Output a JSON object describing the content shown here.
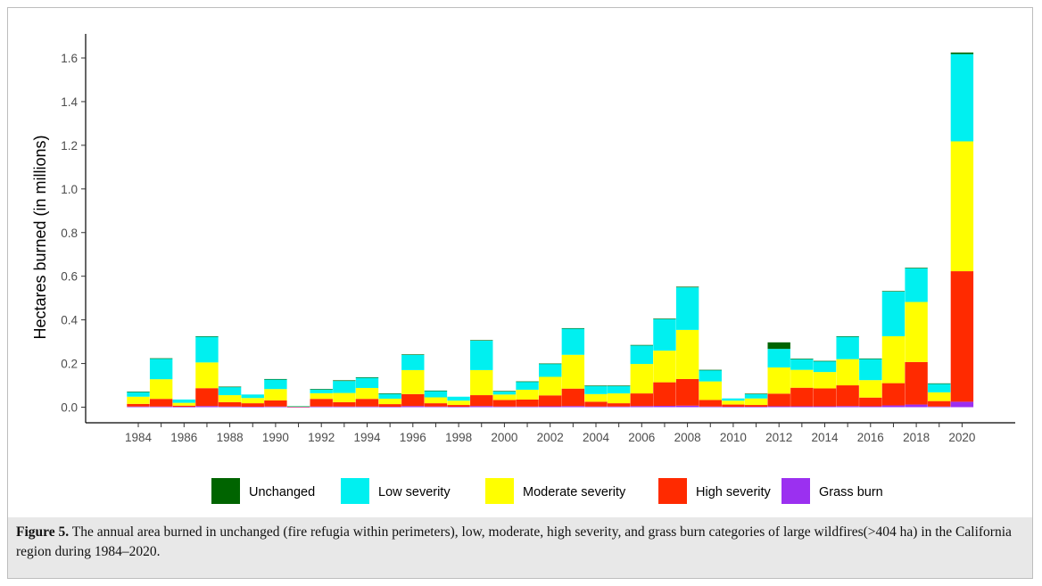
{
  "chart_data": {
    "type": "bar",
    "stacked": true,
    "ylabel": "Hectares burned (in millions)",
    "xlabel": "",
    "ylim": [
      0,
      1.72
    ],
    "y_ticks": [
      "0.0",
      "0.2",
      "0.4",
      "0.6",
      "0.8",
      "1.0",
      "1.2",
      "1.4",
      "1.6"
    ],
    "x_tick_labels": [
      "1984",
      "1986",
      "1988",
      "1990",
      "1992",
      "1994",
      "1996",
      "1998",
      "2000",
      "2002",
      "2004",
      "2006",
      "2008",
      "2010",
      "2012",
      "2014",
      "2016",
      "2018",
      "2020"
    ],
    "grid": false,
    "legend_position": "bottom",
    "categories": [
      "1984",
      "1985",
      "1986",
      "1987",
      "1988",
      "1989",
      "1990",
      "1991",
      "1992",
      "1993",
      "1994",
      "1995",
      "1996",
      "1997",
      "1998",
      "1999",
      "2000",
      "2001",
      "2002",
      "2003",
      "2004",
      "2005",
      "2006",
      "2007",
      "2008",
      "2009",
      "2010",
      "2011",
      "2012",
      "2013",
      "2014",
      "2015",
      "2016",
      "2017",
      "2018",
      "2019",
      "2020"
    ],
    "series": [
      {
        "name": "Grass burn",
        "color": "#9b30f0",
        "values": [
          0.003,
          0.003,
          0.002,
          0.005,
          0.003,
          0.002,
          0.003,
          0.001,
          0.003,
          0.003,
          0.003,
          0.002,
          0.005,
          0.003,
          0.002,
          0.005,
          0.003,
          0.003,
          0.004,
          0.005,
          0.003,
          0.003,
          0.005,
          0.006,
          0.007,
          0.003,
          0.002,
          0.002,
          0.004,
          0.004,
          0.004,
          0.005,
          0.004,
          0.008,
          0.012,
          0.003,
          0.025
        ]
      },
      {
        "name": "High severity",
        "color": "#ff2a00",
        "values": [
          0.012,
          0.035,
          0.005,
          0.082,
          0.02,
          0.016,
          0.028,
          0.002,
          0.035,
          0.02,
          0.035,
          0.012,
          0.055,
          0.015,
          0.008,
          0.05,
          0.03,
          0.032,
          0.05,
          0.08,
          0.022,
          0.015,
          0.058,
          0.108,
          0.122,
          0.03,
          0.01,
          0.008,
          0.058,
          0.085,
          0.082,
          0.095,
          0.04,
          0.102,
          0.195,
          0.025,
          0.598
        ]
      },
      {
        "name": "Moderate severity",
        "color": "#ffff00",
        "values": [
          0.033,
          0.09,
          0.013,
          0.118,
          0.032,
          0.024,
          0.052,
          0.002,
          0.026,
          0.042,
          0.05,
          0.025,
          0.11,
          0.027,
          0.02,
          0.115,
          0.025,
          0.045,
          0.085,
          0.155,
          0.035,
          0.045,
          0.135,
          0.145,
          0.225,
          0.085,
          0.018,
          0.03,
          0.12,
          0.082,
          0.075,
          0.12,
          0.08,
          0.215,
          0.275,
          0.04,
          0.595
        ]
      },
      {
        "name": "Low severity",
        "color": "#00f0f0",
        "values": [
          0.022,
          0.095,
          0.015,
          0.118,
          0.038,
          0.016,
          0.045,
          0.001,
          0.018,
          0.055,
          0.048,
          0.023,
          0.07,
          0.03,
          0.018,
          0.135,
          0.015,
          0.037,
          0.06,
          0.12,
          0.038,
          0.035,
          0.085,
          0.145,
          0.195,
          0.052,
          0.01,
          0.02,
          0.085,
          0.05,
          0.05,
          0.103,
          0.098,
          0.205,
          0.155,
          0.04,
          0.4
        ]
      },
      {
        "name": "Unchanged",
        "color": "#006400",
        "values": [
          0.001,
          0.001,
          0.0,
          0.002,
          0.001,
          0.0,
          0.001,
          0.0,
          0.001,
          0.003,
          0.001,
          0.001,
          0.002,
          0.001,
          0.0,
          0.002,
          0.001,
          0.001,
          0.001,
          0.002,
          0.001,
          0.001,
          0.002,
          0.002,
          0.003,
          0.001,
          0.0,
          0.002,
          0.03,
          0.001,
          0.001,
          0.002,
          0.001,
          0.002,
          0.002,
          0.001,
          0.007
        ]
      }
    ],
    "legend": [
      {
        "label": "Unchanged",
        "color": "#006400"
      },
      {
        "label": "Low severity",
        "color": "#00f0f0"
      },
      {
        "label": "Moderate severity",
        "color": "#ffff00"
      },
      {
        "label": "High severity",
        "color": "#ff2a00"
      },
      {
        "label": "Grass burn",
        "color": "#9b30f0"
      }
    ]
  },
  "caption": {
    "label": "Figure 5.",
    "text": " The annual area burned in unchanged (fire refugia within perimeters), low, moderate, high severity, and grass burn categories of large wildfires(>404 ha) in the California region during 1984–2020."
  }
}
